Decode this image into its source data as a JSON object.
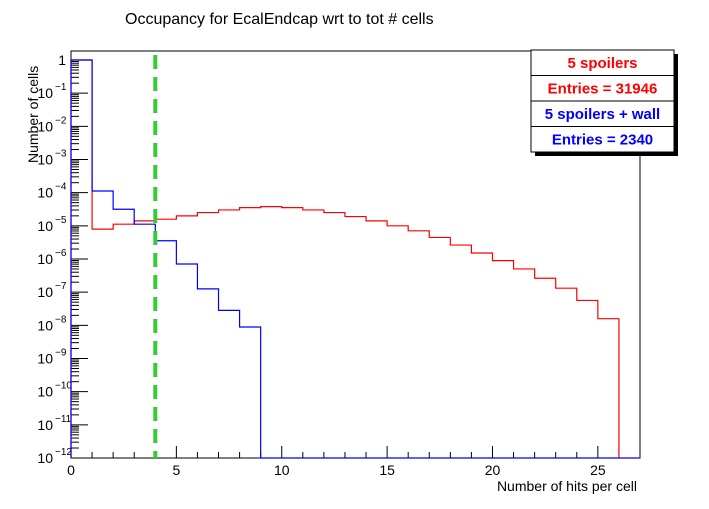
{
  "chart_data": {
    "type": "line",
    "title": "Occupancy for EcalEndcap wrt to tot # cells",
    "xlabel": "Number of hits per cell",
    "ylabel": "Number of cells",
    "xlim": [
      0,
      27
    ],
    "ylim_log10": [
      -12,
      0
    ],
    "log_y": true,
    "x_ticks": [
      {
        "v": 0,
        "label": "0"
      },
      {
        "v": 5,
        "label": "5"
      },
      {
        "v": 10,
        "label": "10"
      },
      {
        "v": 15,
        "label": "15"
      },
      {
        "v": 20,
        "label": "20"
      },
      {
        "v": 25,
        "label": "25"
      }
    ],
    "y_ticks": [
      {
        "e": 0,
        "base": "1",
        "exp": ""
      },
      {
        "e": -1,
        "base": "10",
        "exp": "−1"
      },
      {
        "e": -2,
        "base": "10",
        "exp": "−2"
      },
      {
        "e": -3,
        "base": "10",
        "exp": "−3"
      },
      {
        "e": -4,
        "base": "10",
        "exp": "−4"
      },
      {
        "e": -5,
        "base": "10",
        "exp": "−5"
      },
      {
        "e": -6,
        "base": "10",
        "exp": "−6"
      },
      {
        "e": -7,
        "base": "10",
        "exp": "−7"
      },
      {
        "e": -8,
        "base": "10",
        "exp": "−8"
      },
      {
        "e": -9,
        "base": "10",
        "exp": "−9"
      },
      {
        "e": -10,
        "base": "10",
        "exp": "−10"
      },
      {
        "e": -11,
        "base": "10",
        "exp": "−11"
      },
      {
        "e": -12,
        "base": "10",
        "exp": "−12"
      }
    ],
    "bin_edges": [
      0,
      1,
      2,
      3,
      4,
      5,
      6,
      7,
      8,
      9,
      10,
      11,
      12,
      13,
      14,
      15,
      16,
      17,
      18,
      19,
      20,
      21,
      22,
      23,
      24,
      25,
      26
    ],
    "series": [
      {
        "name": "5 spoilers",
        "color": "#ff0000",
        "log10_values": [
          0,
          -5.1,
          -4.95,
          -4.85,
          -4.8,
          -4.7,
          -4.6,
          -4.52,
          -4.45,
          -4.42,
          -4.45,
          -4.52,
          -4.6,
          -4.72,
          -4.85,
          -5.0,
          -5.15,
          -5.35,
          -5.58,
          -5.82,
          -6.05,
          -6.3,
          -6.58,
          -6.88,
          -7.25,
          -7.8
        ]
      },
      {
        "name": "5 spoilers + wall",
        "color": "#0000ff",
        "log10_values": [
          0,
          -3.95,
          -4.5,
          -4.95,
          -5.45,
          -6.15,
          -6.9,
          -7.55,
          -8.05
        ]
      }
    ],
    "cut_line": {
      "x": 4,
      "color": "#33cc33"
    },
    "legend": {
      "placement": "top-right",
      "entries": [
        {
          "text": "5 spoilers",
          "color": "#ff0000"
        },
        {
          "text": "Entries = 31946",
          "color": "#ff0000"
        },
        {
          "text": "5 spoilers + wall",
          "color": "#0000ff"
        },
        {
          "text": "Entries = 2340",
          "color": "#0000ff"
        }
      ]
    }
  }
}
